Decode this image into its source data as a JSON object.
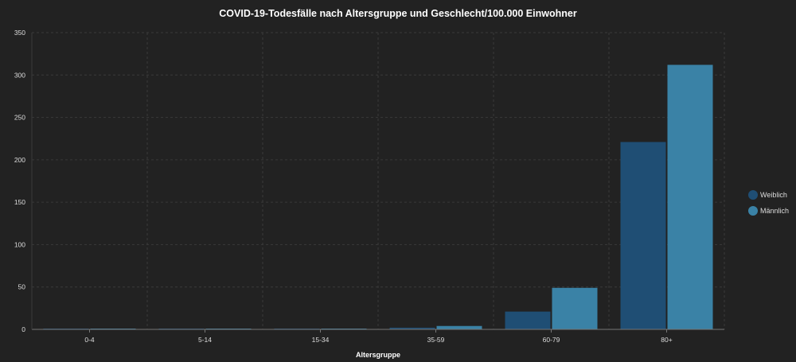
{
  "chart_data": {
    "type": "bar",
    "title": "COVID-19-Todesfälle nach Altersgruppe und Geschlecht/100.000 Einwohner",
    "xlabel": "Altersgruppe",
    "ylabel": "",
    "categories": [
      "0-4",
      "5-14",
      "15-34",
      "35-59",
      "60-79",
      "80+"
    ],
    "ylim": [
      0,
      350
    ],
    "yticks": [
      0,
      50,
      100,
      150,
      200,
      250,
      300,
      350
    ],
    "grid": true,
    "legend_position": "right",
    "series": [
      {
        "name": "Weiblich",
        "color": "#1f4e74",
        "values": [
          0.1,
          0.1,
          0.2,
          2,
          21,
          221
        ]
      },
      {
        "name": "Männlich",
        "color": "#3a82a6",
        "values": [
          0.2,
          0.1,
          0.3,
          4,
          49,
          312
        ]
      }
    ]
  }
}
